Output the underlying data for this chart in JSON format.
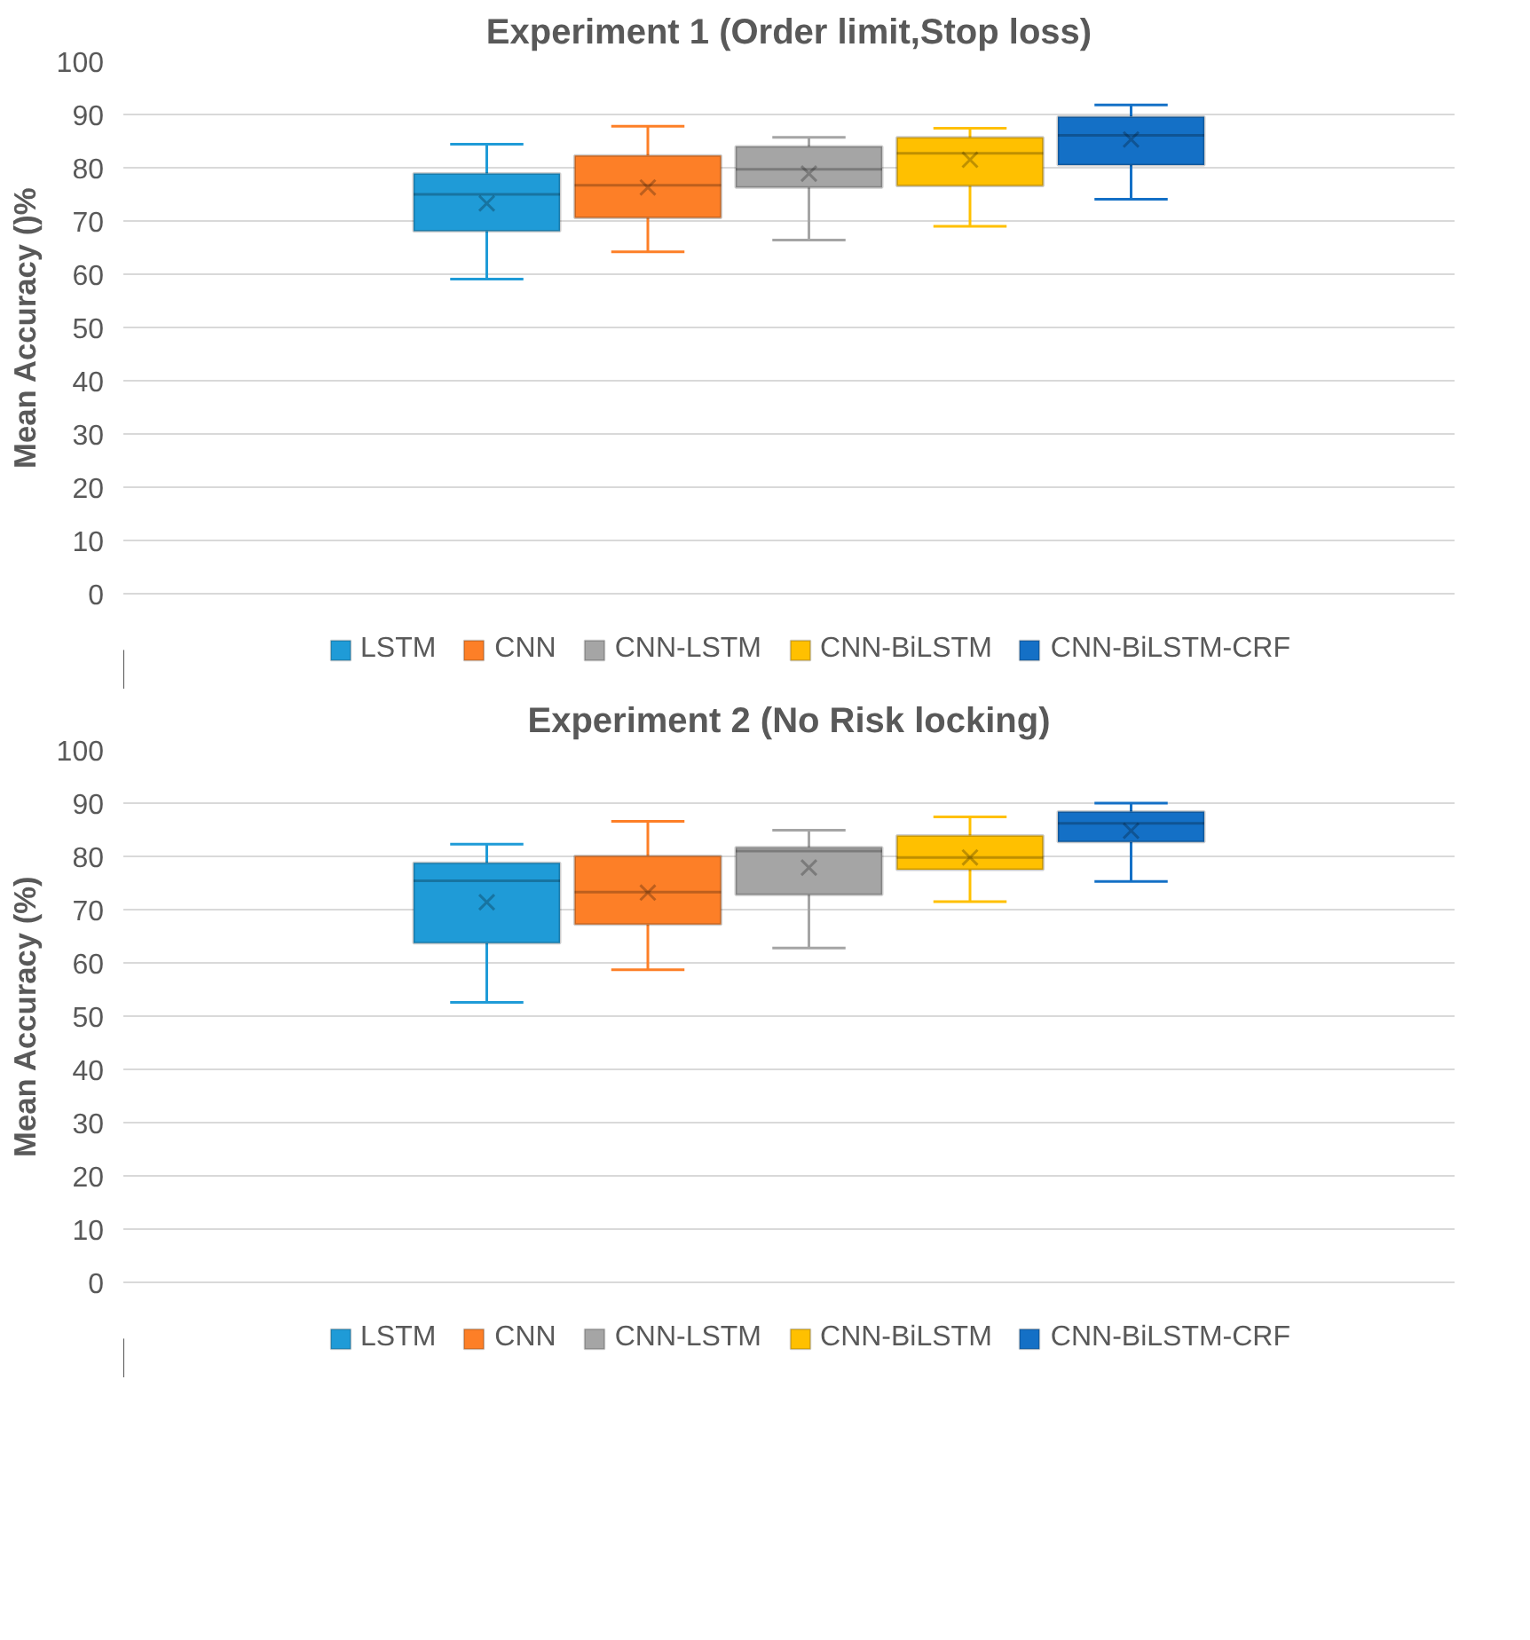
{
  "chart_data": [
    {
      "type": "box",
      "title": "Experiment 1 (Order limit,Stop loss)",
      "ylabel": "Mean Accuracy ()%",
      "categories": [
        null
      ],
      "ylim": [
        0,
        100
      ],
      "yticks": [
        0,
        10,
        20,
        30,
        40,
        50,
        60,
        70,
        80,
        90,
        100
      ],
      "grid": "y",
      "legend": "bottom",
      "series": [
        {
          "name": "LSTM",
          "color": "#1f9bd7",
          "boxes": [
            {
              "low": 59.1,
              "q1": 68.1,
              "median": 75,
              "q3": 78.9,
              "high": 84.4,
              "mean": 73.3
            }
          ]
        },
        {
          "name": "CNN",
          "color": "#fd7f27",
          "boxes": [
            {
              "low": 64.2,
              "q1": 70.6,
              "median": 76.7,
              "q3": 82.3,
              "high": 87.8,
              "mean": 76.3
            }
          ]
        },
        {
          "name": "CNN-LSTM",
          "color": "#a5a5a5",
          "boxes": [
            {
              "low": 66.4,
              "q1": 76.3,
              "median": 79.7,
              "q3": 84,
              "high": 85.7,
              "mean": 78.9
            }
          ]
        },
        {
          "name": "CNN-BiLSTM",
          "color": "#ffc000",
          "boxes": [
            {
              "low": 69,
              "q1": 76.6,
              "median": 82.7,
              "q3": 85.7,
              "high": 87.4,
              "mean": 81.5
            }
          ]
        },
        {
          "name": "CNN-BiLSTM-CRF",
          "color": "#1470c6",
          "boxes": [
            {
              "low": 74.1,
              "q1": 80.5,
              "median": 86.1,
              "q3": 89.6,
              "high": 91.8,
              "mean": 85.3
            }
          ]
        }
      ]
    },
    {
      "type": "box",
      "title": "Experiment 2 (No Risk locking)",
      "ylabel": "Mean Accuracy (%)",
      "categories": [
        null
      ],
      "ylim": [
        0,
        100
      ],
      "yticks": [
        0,
        10,
        20,
        30,
        40,
        50,
        60,
        70,
        80,
        90,
        100
      ],
      "grid": "y",
      "legend": "bottom",
      "series": [
        {
          "name": "LSTM",
          "color": "#1f9bd7",
          "boxes": [
            {
              "low": 52.6,
              "q1": 63.7,
              "median": 75.4,
              "q3": 78.8,
              "high": 82.3,
              "mean": 71.4
            }
          ]
        },
        {
          "name": "CNN",
          "color": "#fd7f27",
          "boxes": [
            {
              "low": 58.7,
              "q1": 67.2,
              "median": 73.3,
              "q3": 80.1,
              "high": 86.6,
              "mean": 73.2
            }
          ]
        },
        {
          "name": "CNN-LSTM",
          "color": "#a5a5a5",
          "boxes": [
            {
              "low": 62.8,
              "q1": 72.8,
              "median": 81,
              "q3": 81.7,
              "high": 84.9,
              "mean": 77.9
            }
          ]
        },
        {
          "name": "CNN-BiLSTM",
          "color": "#ffc000",
          "boxes": [
            {
              "low": 71.5,
              "q1": 77.5,
              "median": 79.8,
              "q3": 83.9,
              "high": 87.4,
              "mean": 79.8
            }
          ]
        },
        {
          "name": "CNN-BiLSTM-CRF",
          "color": "#1470c6",
          "boxes": [
            {
              "low": 75.3,
              "q1": 82.7,
              "median": 86.2,
              "q3": 88.4,
              "high": 90,
              "mean": 84.8
            }
          ]
        }
      ]
    }
  ]
}
